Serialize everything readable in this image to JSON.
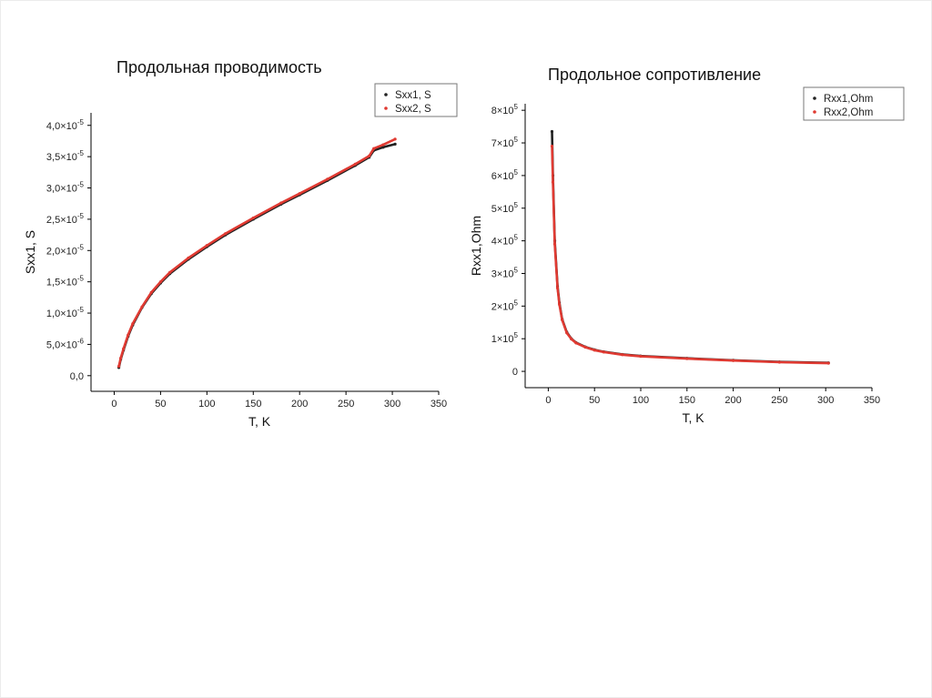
{
  "slide": {
    "title_left": "Продольная проводимость",
    "title_right": "Продольное сопротивление"
  },
  "chart_data": [
    {
      "type": "line",
      "title": "Продольная проводимость",
      "xlabel": "T, K",
      "ylabel": "Sxx1, S",
      "xlim": [
        -25,
        350
      ],
      "ylim": [
        -2.5e-06,
        4.2e-05
      ],
      "x_ticks": [
        {
          "value": 0,
          "label": "0"
        },
        {
          "value": 50,
          "label": "50"
        },
        {
          "value": 100,
          "label": "100"
        },
        {
          "value": 150,
          "label": "150"
        },
        {
          "value": 200,
          "label": "200"
        },
        {
          "value": 250,
          "label": "250"
        },
        {
          "value": 300,
          "label": "300"
        },
        {
          "value": 350,
          "label": "350"
        }
      ],
      "y_ticks": [
        {
          "value": 0,
          "mant": "0,0",
          "exp": ""
        },
        {
          "value": 5e-06,
          "mant": "5,0×10",
          "exp": "-6"
        },
        {
          "value": 1e-05,
          "mant": "1,0×10",
          "exp": "-5"
        },
        {
          "value": 1.5e-05,
          "mant": "1,5×10",
          "exp": "-5"
        },
        {
          "value": 2e-05,
          "mant": "2,0×10",
          "exp": "-5"
        },
        {
          "value": 2.5e-05,
          "mant": "2,5×10",
          "exp": "-5"
        },
        {
          "value": 3e-05,
          "mant": "3,0×10",
          "exp": "-5"
        },
        {
          "value": 3.5e-05,
          "mant": "3,5×10",
          "exp": "-5"
        },
        {
          "value": 4e-05,
          "mant": "4,0×10",
          "exp": "-5"
        }
      ],
      "legend_position": "top-right",
      "grid": false,
      "series": [
        {
          "name": "Sxx1, S",
          "color": "#222222",
          "x": [
            5,
            7,
            10,
            15,
            20,
            30,
            40,
            50,
            60,
            80,
            100,
            120,
            150,
            180,
            200,
            230,
            260,
            275,
            280,
            290,
            303
          ],
          "y": [
            1.3e-06,
            2.6e-06,
            4.1e-06,
            6.3e-06,
            8.1e-06,
            1.09e-05,
            1.31e-05,
            1.48e-05,
            1.63e-05,
            1.86e-05,
            2.06e-05,
            2.25e-05,
            2.5e-05,
            2.74e-05,
            2.89e-05,
            3.12e-05,
            3.36e-05,
            3.49e-05,
            3.6e-05,
            3.65e-05,
            3.7e-05
          ]
        },
        {
          "name": "Sxx2, S",
          "color": "#e03a32",
          "x": [
            5,
            7,
            10,
            15,
            20,
            30,
            40,
            50,
            60,
            80,
            100,
            120,
            150,
            180,
            200,
            230,
            260,
            275,
            280,
            290,
            303
          ],
          "y": [
            1.5e-06,
            2.8e-06,
            4.3e-06,
            6.5e-06,
            8.3e-06,
            1.1e-05,
            1.33e-05,
            1.5e-05,
            1.65e-05,
            1.88e-05,
            2.08e-05,
            2.27e-05,
            2.52e-05,
            2.76e-05,
            2.91e-05,
            3.14e-05,
            3.38e-05,
            3.51e-05,
            3.63e-05,
            3.69e-05,
            3.78e-05
          ]
        }
      ]
    },
    {
      "type": "line",
      "title": "Продольное сопротивление",
      "xlabel": "T, K",
      "ylabel": "Rxx1,Ohm",
      "xlim": [
        -25,
        350
      ],
      "ylim": [
        -50000,
        820000
      ],
      "x_ticks": [
        {
          "value": 0,
          "label": "0"
        },
        {
          "value": 50,
          "label": "50"
        },
        {
          "value": 100,
          "label": "100"
        },
        {
          "value": 150,
          "label": "150"
        },
        {
          "value": 200,
          "label": "200"
        },
        {
          "value": 250,
          "label": "250"
        },
        {
          "value": 300,
          "label": "300"
        },
        {
          "value": 350,
          "label": "350"
        }
      ],
      "y_ticks": [
        {
          "value": 0,
          "mant": "0",
          "exp": ""
        },
        {
          "value": 100000,
          "mant": "1×10",
          "exp": "5"
        },
        {
          "value": 200000,
          "mant": "2×10",
          "exp": "5"
        },
        {
          "value": 300000,
          "mant": "3×10",
          "exp": "5"
        },
        {
          "value": 400000,
          "mant": "4×10",
          "exp": "5"
        },
        {
          "value": 500000,
          "mant": "5×10",
          "exp": "5"
        },
        {
          "value": 600000,
          "mant": "6×10",
          "exp": "5"
        },
        {
          "value": 700000,
          "mant": "7×10",
          "exp": "5"
        },
        {
          "value": 800000,
          "mant": "8×10",
          "exp": "5"
        }
      ],
      "legend_position": "top-right",
      "grid": false,
      "series": [
        {
          "name": "Rxx1,Ohm",
          "color": "#222222",
          "x": [
            4,
            5,
            7,
            10,
            12,
            15,
            20,
            25,
            30,
            40,
            50,
            60,
            80,
            100,
            150,
            200,
            250,
            303
          ],
          "y": [
            735000,
            600000,
            400000,
            260000,
            210000,
            160000,
            120000,
            100000,
            88000,
            75000,
            66000,
            60000,
            52000,
            47000,
            40000,
            34000,
            29000,
            26000
          ]
        },
        {
          "name": "Rxx2,Ohm",
          "color": "#e03a32",
          "x": [
            4,
            5,
            7,
            10,
            12,
            15,
            20,
            25,
            30,
            40,
            50,
            60,
            80,
            100,
            150,
            200,
            250,
            303
          ],
          "y": [
            690000,
            580000,
            390000,
            255000,
            205000,
            158000,
            118000,
            99000,
            87000,
            74000,
            65000,
            59000,
            51000,
            46000,
            39000,
            33000,
            28000,
            25000
          ]
        }
      ]
    }
  ]
}
